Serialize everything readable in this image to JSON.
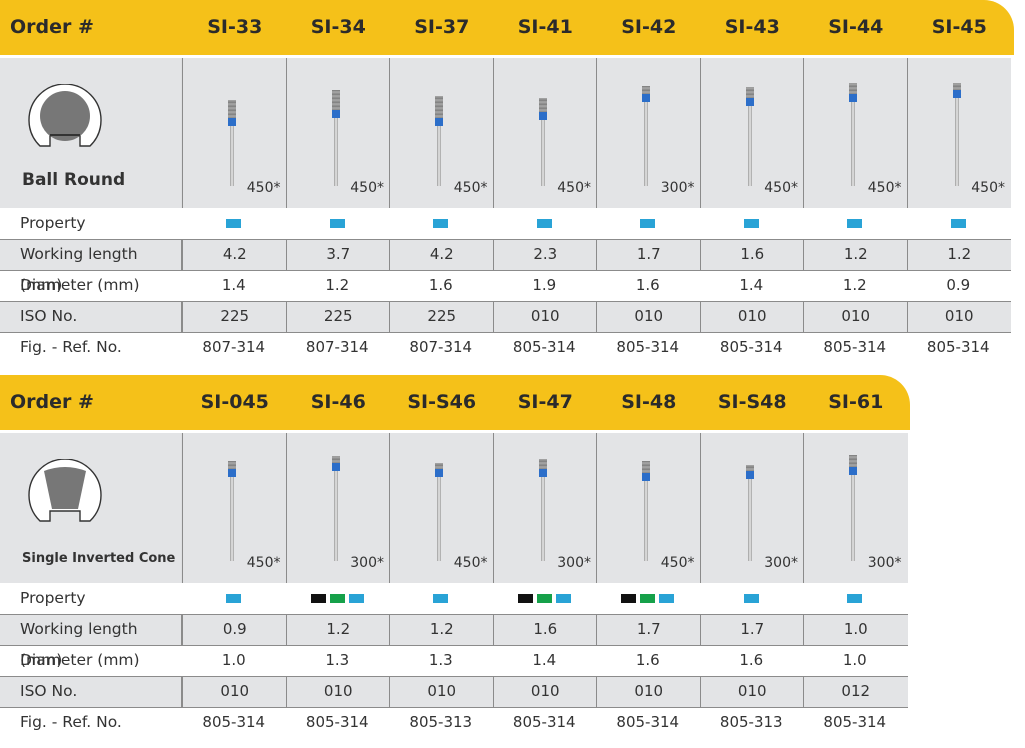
{
  "colors": {
    "header": "#f5c119",
    "blue": "#29a3d6",
    "green": "#16a14a",
    "black": "#111111"
  },
  "table1": {
    "header_label": "Order #",
    "shape_name": "Ball Round",
    "shape_icon": "ball-round-icon",
    "columns": [
      "SI-33",
      "SI-34",
      "SI-37",
      "SI-41",
      "SI-42",
      "SI-43",
      "SI-44",
      "SI-45"
    ],
    "speeds": [
      "450*",
      "450*",
      "450*",
      "450*",
      "300*",
      "450*",
      "450*",
      "450*"
    ],
    "row_labels": {
      "property": "Property",
      "working_length": "Working length (mm)",
      "diameter": "Diameter (mm)",
      "iso": "ISO No.",
      "ref": "Fig. - Ref. No."
    },
    "property": [
      [
        "blue"
      ],
      [
        "blue"
      ],
      [
        "blue"
      ],
      [
        "blue"
      ],
      [
        "blue"
      ],
      [
        "blue"
      ],
      [
        "blue"
      ],
      [
        "blue"
      ]
    ],
    "working_length": [
      "4.2",
      "3.7",
      "4.2",
      "2.3",
      "1.7",
      "1.6",
      "1.2",
      "1.2"
    ],
    "diameter": [
      "1.4",
      "1.2",
      "1.6",
      "1.9",
      "1.6",
      "1.4",
      "1.2",
      "0.9"
    ],
    "iso": [
      "225",
      "225",
      "225",
      "010",
      "010",
      "010",
      "010",
      "010"
    ],
    "ref": [
      "807-314",
      "807-314",
      "807-314",
      "805-314",
      "805-314",
      "805-314",
      "805-314",
      "805-314"
    ]
  },
  "table2": {
    "header_label": "Order #",
    "shape_name": "Single Inverted Cone",
    "shape_icon": "inverted-cone-icon",
    "columns": [
      "SI-045",
      "SI-46",
      "SI-S46",
      "SI-47",
      "SI-48",
      "SI-S48",
      "SI-61"
    ],
    "speeds": [
      "450*",
      "300*",
      "450*",
      "300*",
      "450*",
      "300*",
      "300*"
    ],
    "row_labels": {
      "property": "Property",
      "working_length": "Working length (mm)",
      "diameter": "Diameter (mm)",
      "iso": "ISO No.",
      "ref": "Fig. - Ref. No."
    },
    "property": [
      [
        "blue"
      ],
      [
        "black",
        "green",
        "blue"
      ],
      [
        "blue"
      ],
      [
        "black",
        "green",
        "blue"
      ],
      [
        "black",
        "green",
        "blue"
      ],
      [
        "blue"
      ],
      [
        "blue"
      ]
    ],
    "working_length": [
      "0.9",
      "1.2",
      "1.2",
      "1.6",
      "1.7",
      "1.7",
      "1.0"
    ],
    "diameter": [
      "1.0",
      "1.3",
      "1.3",
      "1.4",
      "1.6",
      "1.6",
      "1.0"
    ],
    "iso": [
      "010",
      "010",
      "010",
      "010",
      "010",
      "010",
      "012"
    ],
    "ref": [
      "805-314",
      "805-314",
      "805-313",
      "805-314",
      "805-314",
      "805-313",
      "805-314"
    ]
  }
}
